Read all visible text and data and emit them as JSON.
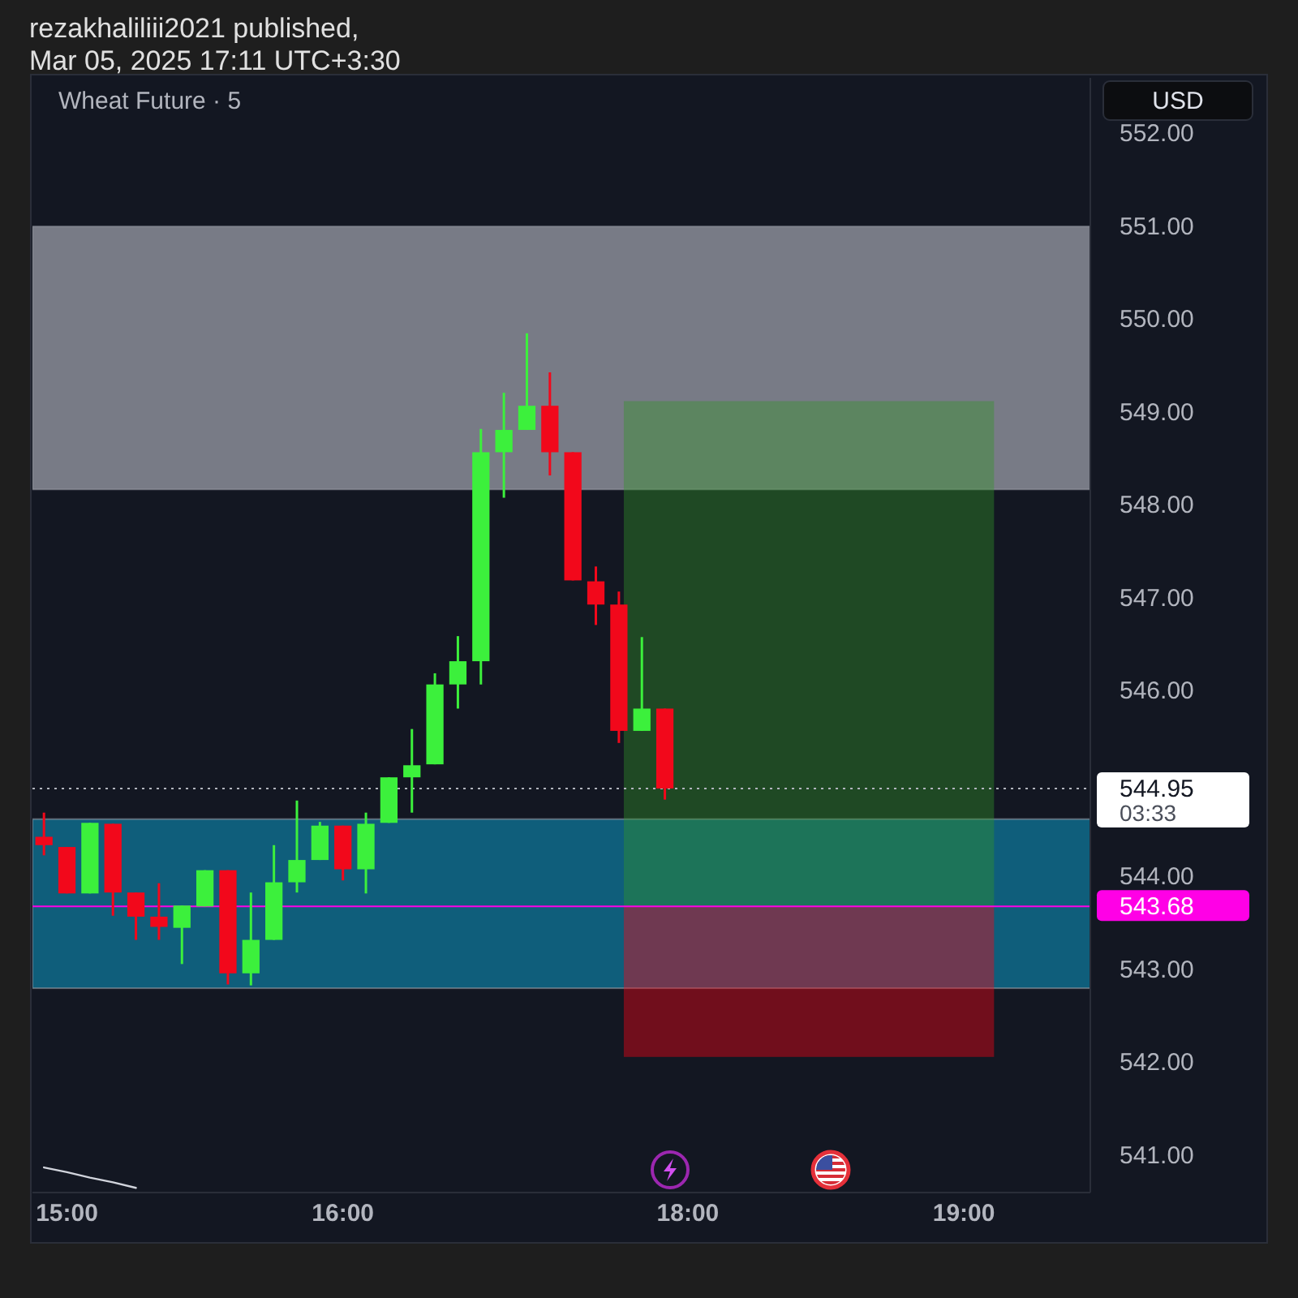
{
  "chart_data": {
    "type": "candlestick",
    "title": "rezakhaliliii2021 published,",
    "subtitle": "Mar 05, 2025 17:11 UTC+3:30",
    "annotations": [
      "Wheat Future · 5",
      "USD",
      "03:33"
    ],
    "categories": [
      null,
      "15:00",
      null,
      null,
      null,
      null,
      null,
      null,
      null,
      null,
      null,
      null,
      null,
      "16:00",
      null,
      null,
      null,
      null,
      null,
      null,
      null,
      null,
      null,
      null,
      null,
      null,
      null,
      null,
      "18:00",
      null,
      null,
      null,
      null,
      null,
      null,
      null,
      null,
      null,
      null,
      null,
      "19:00",
      null,
      null,
      null,
      null,
      null
    ],
    "ohlc": [
      [
        544.43,
        544.69,
        544.23,
        544.34
      ],
      [
        544.32,
        544.32,
        543.82,
        543.82
      ],
      [
        543.82,
        544.58,
        543.82,
        544.58
      ],
      [
        544.57,
        544.57,
        543.58,
        543.83
      ],
      [
        543.83,
        543.83,
        543.32,
        543.57
      ],
      [
        543.57,
        543.93,
        543.32,
        543.46
      ],
      [
        543.45,
        543.69,
        543.06,
        543.69
      ],
      [
        543.68,
        544.07,
        543.68,
        544.07
      ],
      [
        544.07,
        544.07,
        542.84,
        542.96
      ],
      [
        542.96,
        543.83,
        542.83,
        543.32
      ],
      [
        543.32,
        544.34,
        543.32,
        543.94
      ],
      [
        543.94,
        544.82,
        543.83,
        544.18
      ],
      [
        544.18,
        544.59,
        544.18,
        544.55
      ],
      [
        544.55,
        544.55,
        543.96,
        544.08
      ],
      [
        544.08,
        544.69,
        543.82,
        544.57
      ],
      [
        544.58,
        545.07,
        544.58,
        545.07
      ],
      [
        545.07,
        545.59,
        544.69,
        545.2
      ],
      [
        545.21,
        546.19,
        545.21,
        546.07
      ],
      [
        546.07,
        546.59,
        545.81,
        546.32
      ],
      [
        546.32,
        548.82,
        546.07,
        548.57
      ],
      [
        548.57,
        549.21,
        548.08,
        548.81
      ],
      [
        548.81,
        549.85,
        548.81,
        549.07
      ],
      [
        549.07,
        549.43,
        548.32,
        548.57
      ],
      [
        548.57,
        548.57,
        547.19,
        547.19
      ],
      [
        547.18,
        547.34,
        546.71,
        546.93
      ],
      [
        546.93,
        547.07,
        545.44,
        545.57
      ],
      [
        545.57,
        546.58,
        545.57,
        545.81
      ],
      [
        545.81,
        545.81,
        544.83,
        544.95
      ],
      null,
      null,
      null,
      null,
      null,
      null,
      null,
      null,
      null,
      null,
      null,
      null,
      null,
      null,
      null,
      null,
      null,
      null
    ],
    "colors": [
      "#f2081b",
      "#f2081b",
      "#3cf03c",
      "#f2081b",
      "#f2081b",
      "#f2081b",
      "#3cf03c",
      "#3cf03c",
      "#f2081b",
      "#3cf03c",
      "#3cf03c",
      "#3cf03c",
      "#3cf03c",
      "#f2081b",
      "#3cf03c",
      "#3cf03c",
      "#3cf03c",
      "#3cf03c",
      "#3cf03c",
      "#3cf03c",
      "#3cf03c",
      "#3cf03c",
      "#f2081b",
      "#f2081b",
      "#f2081b",
      "#f2081b",
      "#3cf03c",
      "#f2081b",
      null,
      null,
      null,
      null,
      null,
      null,
      null,
      null,
      null,
      null,
      null,
      null,
      null,
      null,
      null,
      null,
      null,
      null
    ],
    "series": [
      {
        "type": "line",
        "color": "#d1d4dc",
        "values": [
          540.87,
          540.82,
          540.76,
          540.71,
          540.65,
          null,
          null,
          null,
          null,
          null,
          null,
          null,
          null,
          null,
          null,
          null,
          null,
          null,
          null,
          null,
          null,
          null,
          null,
          null,
          null,
          null,
          null,
          null,
          null,
          null,
          null,
          null,
          null,
          null,
          null,
          null,
          null,
          null,
          null,
          null,
          null,
          null,
          null,
          null,
          null,
          null
        ]
      }
    ],
    "ylim": [
      540.6,
      552.6
    ],
    "yticks": [
      {
        "value": 541,
        "label": "541.00"
      },
      {
        "value": 542,
        "label": "542.00"
      },
      {
        "value": 543,
        "label": "543.00"
      },
      {
        "value": 544,
        "label": "544.00"
      },
      {
        "value": 546,
        "label": "546.00"
      },
      {
        "value": 547,
        "label": "547.00"
      },
      {
        "value": 548,
        "label": "548.00"
      },
      {
        "value": 549,
        "label": "549.00"
      },
      {
        "value": 550,
        "label": "550.00"
      },
      {
        "value": 551,
        "label": "551.00"
      },
      {
        "value": 552,
        "label": "552.00"
      }
    ],
    "bands": [
      {
        "axis": "y",
        "from": 548.17,
        "to": 551.0,
        "color": "#787b86"
      },
      {
        "axis": "y",
        "from": 542.8,
        "to": 544.62,
        "color": "#0f5e7b"
      },
      {
        "axis": "y",
        "from": 543.68,
        "to": 549.12,
        "color": "#319629"
      },
      {
        "axis": "y",
        "from": 542.06,
        "to": 543.68,
        "color": "#ff0313"
      }
    ],
    "ref_lines": [
      {
        "axis": "y",
        "value": 544.95,
        "label": "544.95",
        "color": "#b2b5be",
        "line_style": "dotted"
      },
      {
        "axis": "y",
        "value": 543.68,
        "label": "543.68",
        "color": "#ff00e6",
        "line_style": "solid"
      }
    ]
  }
}
